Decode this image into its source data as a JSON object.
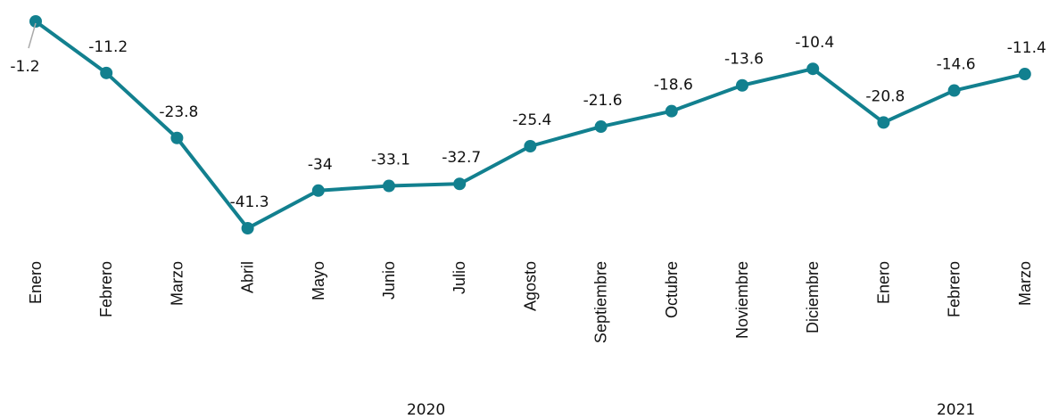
{
  "chart_data": {
    "type": "line",
    "categories": [
      "Enero",
      "Febrero",
      "Marzo",
      "Abril",
      "Mayo",
      "Junio",
      "Julio",
      "Agosto",
      "Septiembre",
      "Octubre",
      "Noviembre",
      "Diciembre",
      "Enero",
      "Febrero",
      "Marzo"
    ],
    "category_groups": [
      {
        "label": "2020",
        "count": 12
      },
      {
        "label": "2021",
        "count": 3
      }
    ],
    "series": [
      {
        "name": null,
        "color": "#12808f",
        "values": [
          -1.2,
          -11.2,
          -23.8,
          -41.3,
          -34,
          -33.1,
          -32.7,
          -25.4,
          -21.6,
          -18.6,
          -13.6,
          -10.4,
          -20.8,
          -14.6,
          -11.4
        ]
      }
    ],
    "grid": false
  }
}
